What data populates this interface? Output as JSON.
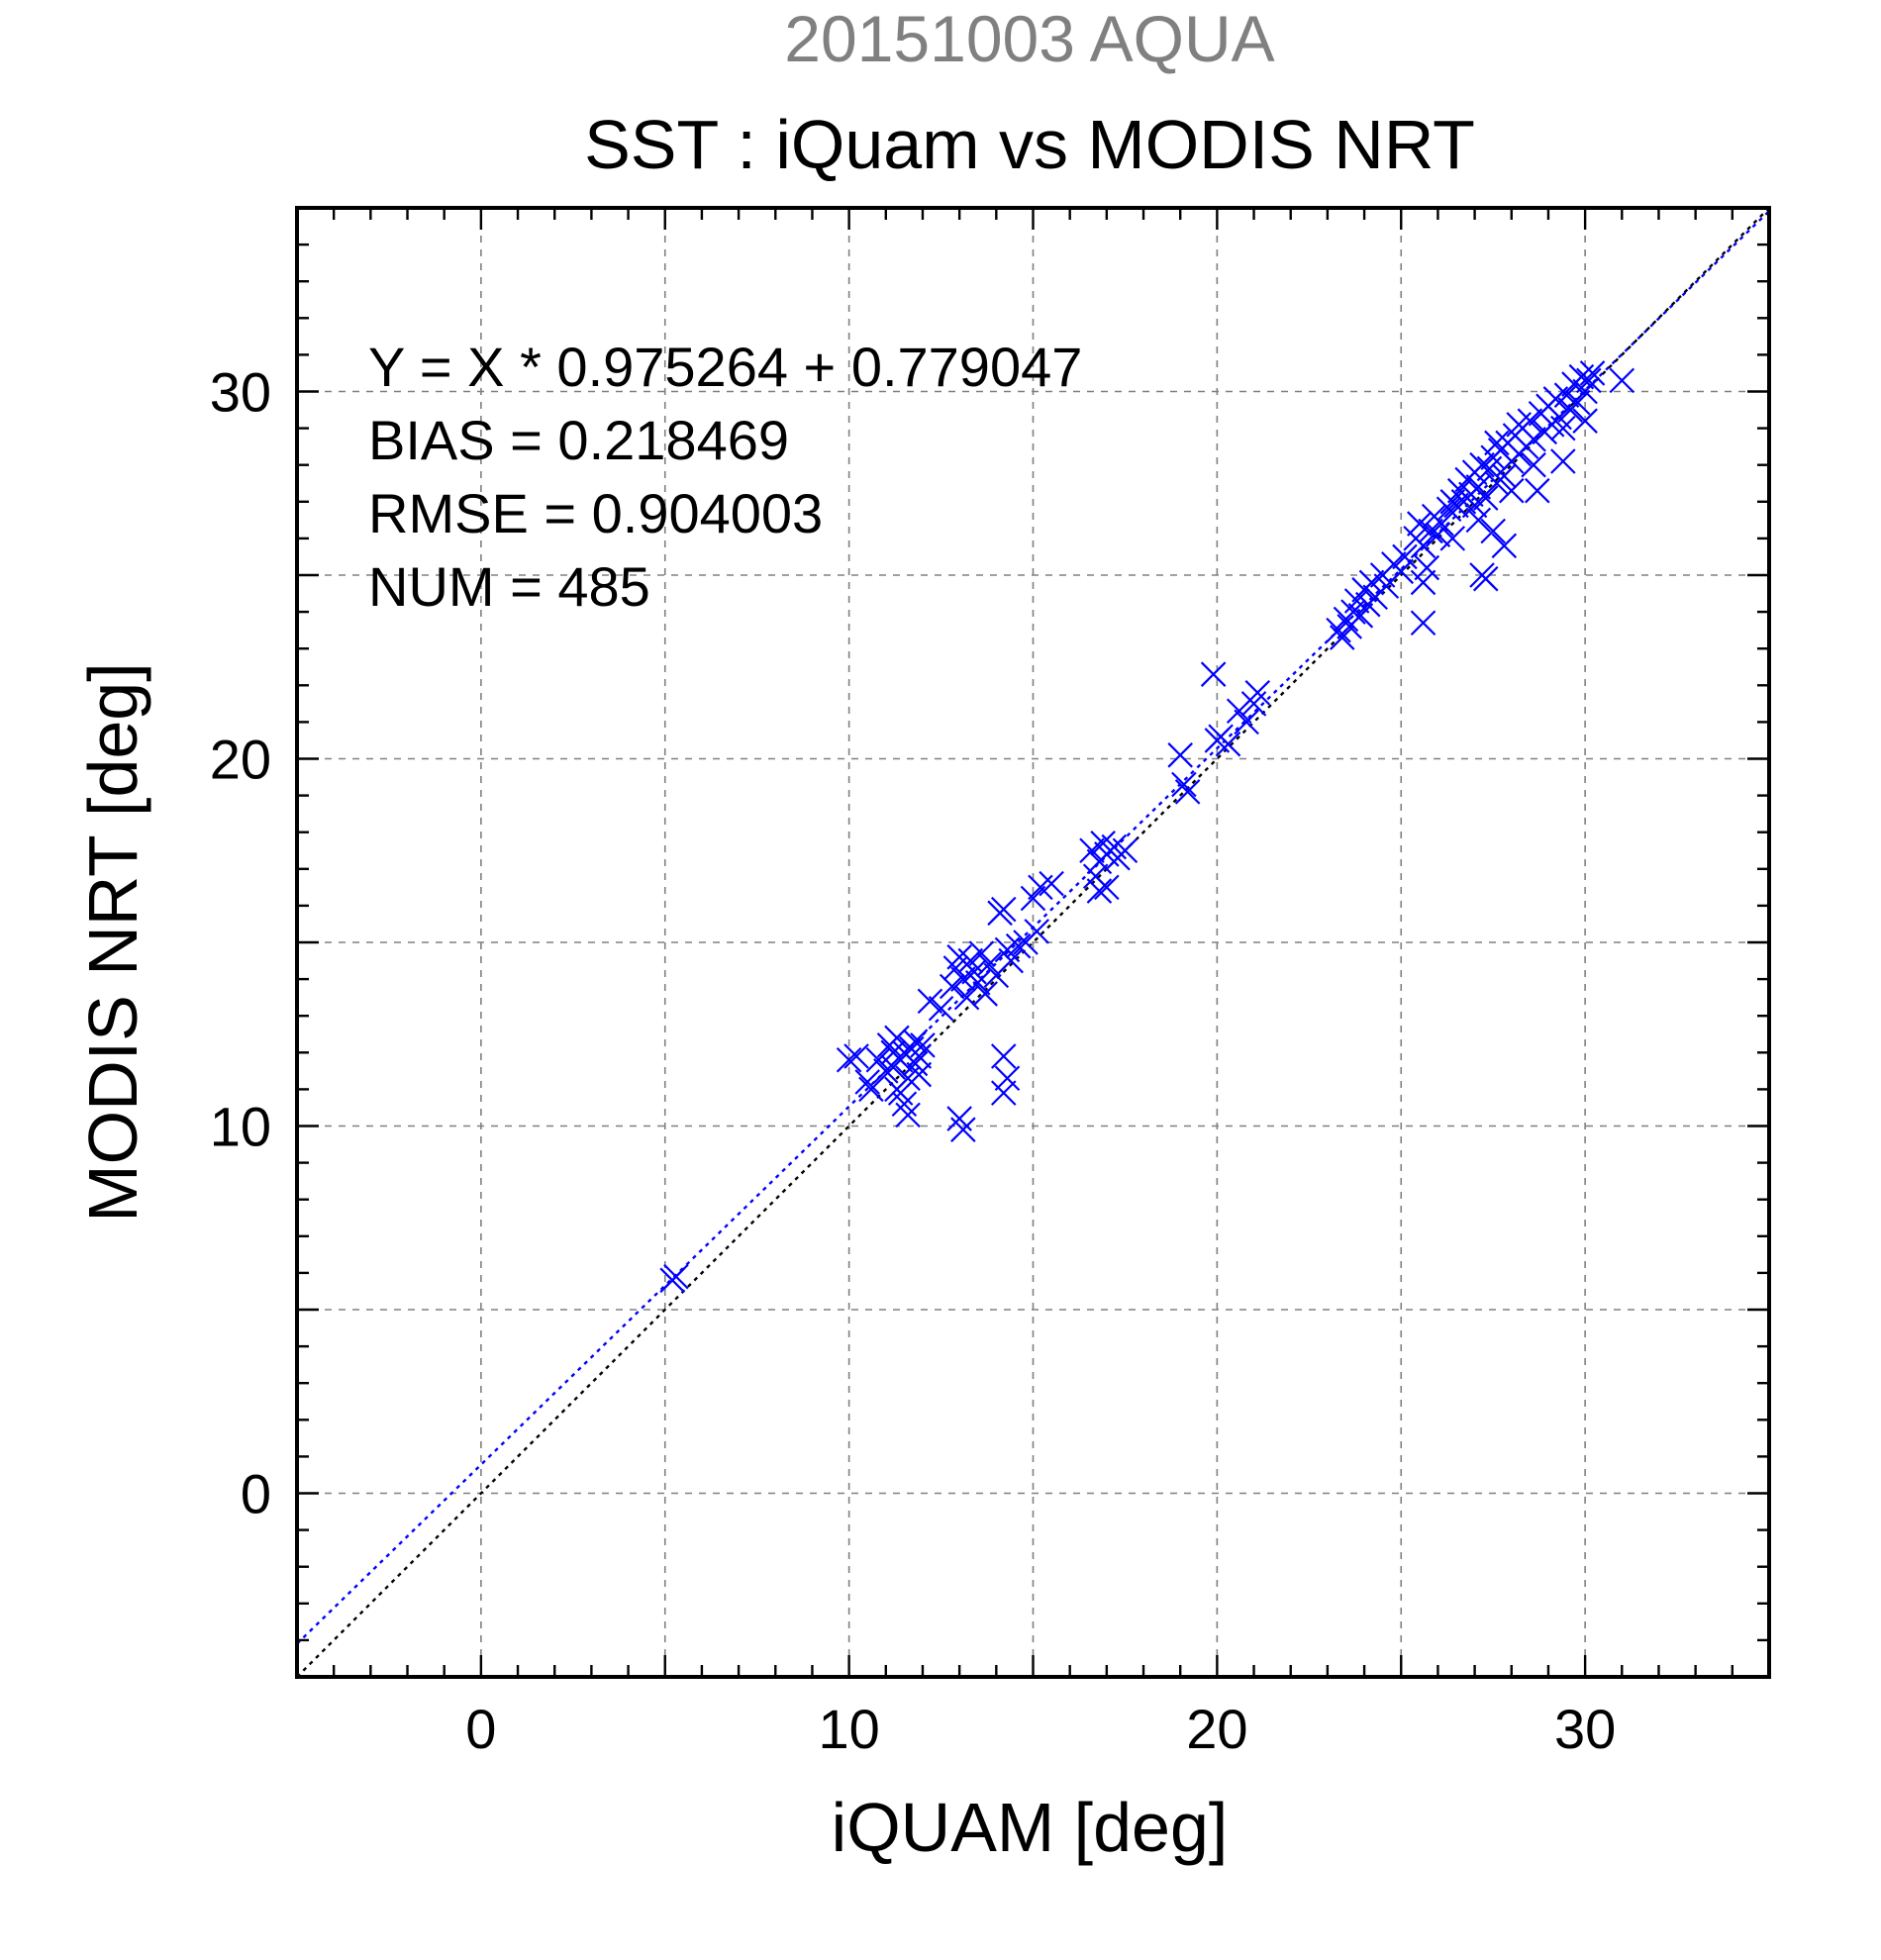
{
  "chart_data": {
    "type": "scatter",
    "title": "20151003 AQUA",
    "subtitle": "SST : iQuam vs MODIS NRT",
    "xlabel": "iQUAM [deg]",
    "ylabel": "MODIS NRT [deg]",
    "xlim": [
      -5,
      35
    ],
    "ylim": [
      -5,
      35
    ],
    "xticks": [
      0,
      10,
      20,
      30
    ],
    "yticks": [
      0,
      10,
      20,
      30
    ],
    "grid": true,
    "colors": {
      "title": "#808080",
      "text": "#000000",
      "points": "#0000ff",
      "fit_line": "#0000ff",
      "identity_line": "#000000",
      "grid": "#808080"
    },
    "stats": [
      "Y = X * 0.975264 + 0.779047",
      "BIAS = 0.218469",
      "RMSE = 0.904003",
      "NUM = 485"
    ],
    "lines": [
      {
        "kind": "regression",
        "slope": 0.975264,
        "intercept": 0.779047,
        "style": "dotted",
        "color": "#0000ff"
      },
      {
        "kind": "identity",
        "slope": 1,
        "intercept": 0,
        "style": "dotted",
        "color": "#000000"
      }
    ],
    "series": [
      {
        "marker": "x",
        "color": "#0000ff",
        "points": [
          [
            5.2,
            5.8
          ],
          [
            5.3,
            5.9
          ],
          [
            10.0,
            11.8
          ],
          [
            10.2,
            11.9
          ],
          [
            10.5,
            11.2
          ],
          [
            10.6,
            11.0
          ],
          [
            10.8,
            11.8
          ],
          [
            11.0,
            11.5
          ],
          [
            11.1,
            12.2
          ],
          [
            11.2,
            11.6
          ],
          [
            11.3,
            12.4
          ],
          [
            11.3,
            11.0
          ],
          [
            11.4,
            11.8
          ],
          [
            11.5,
            12.0
          ],
          [
            11.5,
            10.6
          ],
          [
            11.6,
            11.3
          ],
          [
            11.7,
            12.1
          ],
          [
            11.8,
            11.7
          ],
          [
            11.8,
            12.3
          ],
          [
            11.9,
            11.9
          ],
          [
            11.2,
            12.0
          ],
          [
            11.4,
            10.9
          ],
          [
            11.6,
            10.3
          ],
          [
            11.9,
            11.4
          ],
          [
            12.0,
            12.2
          ],
          [
            12.2,
            13.4
          ],
          [
            12.5,
            13.2
          ],
          [
            12.8,
            13.8
          ],
          [
            12.9,
            14.3
          ],
          [
            13.0,
            14.6
          ],
          [
            13.0,
            10.2
          ],
          [
            13.1,
            9.9
          ],
          [
            13.1,
            14.0
          ],
          [
            13.2,
            13.5
          ],
          [
            13.3,
            14.5
          ],
          [
            13.4,
            14.2
          ],
          [
            13.5,
            13.9
          ],
          [
            13.6,
            14.7
          ],
          [
            13.7,
            13.6
          ],
          [
            13.8,
            14.4
          ],
          [
            14.0,
            14.1
          ],
          [
            14.1,
            15.8
          ],
          [
            14.2,
            15.9
          ],
          [
            14.3,
            14.8
          ],
          [
            14.4,
            14.5
          ],
          [
            14.6,
            14.9
          ],
          [
            14.2,
            11.9
          ],
          [
            14.3,
            11.3
          ],
          [
            14.2,
            10.9
          ],
          [
            14.8,
            15.0
          ],
          [
            15.0,
            16.2
          ],
          [
            15.1,
            15.3
          ],
          [
            15.2,
            16.5
          ],
          [
            15.5,
            16.6
          ],
          [
            16.6,
            17.5
          ],
          [
            16.7,
            16.8
          ],
          [
            16.8,
            16.4
          ],
          [
            16.8,
            17.2
          ],
          [
            16.9,
            17.7
          ],
          [
            17.0,
            16.5
          ],
          [
            17.0,
            17.4
          ],
          [
            17.2,
            17.6
          ],
          [
            17.3,
            17.3
          ],
          [
            17.5,
            17.5
          ],
          [
            19.0,
            20.1
          ],
          [
            19.1,
            19.3
          ],
          [
            19.2,
            19.1
          ],
          [
            19.9,
            22.3
          ],
          [
            20.0,
            20.5
          ],
          [
            20.1,
            20.6
          ],
          [
            20.3,
            20.4
          ],
          [
            20.6,
            21.3
          ],
          [
            20.8,
            21.0
          ],
          [
            21.0,
            21.5
          ],
          [
            21.1,
            21.8
          ],
          [
            23.3,
            23.5
          ],
          [
            23.4,
            23.3
          ],
          [
            23.5,
            23.8
          ],
          [
            23.6,
            23.6
          ],
          [
            23.7,
            24.0
          ],
          [
            23.8,
            24.3
          ],
          [
            23.9,
            23.9
          ],
          [
            24.0,
            24.6
          ],
          [
            24.1,
            24.2
          ],
          [
            24.2,
            24.8
          ],
          [
            24.3,
            24.4
          ],
          [
            24.5,
            25.0
          ],
          [
            24.6,
            24.7
          ],
          [
            24.8,
            25.3
          ],
          [
            25.0,
            25.1
          ],
          [
            25.1,
            25.5
          ],
          [
            25.4,
            26.0
          ],
          [
            25.5,
            26.4
          ],
          [
            25.6,
            25.8
          ],
          [
            25.7,
            25.2
          ],
          [
            25.6,
            24.8
          ],
          [
            25.6,
            23.7
          ],
          [
            25.8,
            26.2
          ],
          [
            25.9,
            26.6
          ],
          [
            26.0,
            26.1
          ],
          [
            26.1,
            26.4
          ],
          [
            26.3,
            26.8
          ],
          [
            26.4,
            26.0
          ],
          [
            26.5,
            26.9
          ],
          [
            26.6,
            27.3
          ],
          [
            26.7,
            27.0
          ],
          [
            26.8,
            27.6
          ],
          [
            26.9,
            27.2
          ],
          [
            27.0,
            27.8
          ],
          [
            27.1,
            27.4
          ],
          [
            27.1,
            26.5
          ],
          [
            27.2,
            28.0
          ],
          [
            27.2,
            25.0
          ],
          [
            27.3,
            27.1
          ],
          [
            27.3,
            24.9
          ],
          [
            27.4,
            27.9
          ],
          [
            27.5,
            28.2
          ],
          [
            27.5,
            26.2
          ],
          [
            27.6,
            27.5
          ],
          [
            27.7,
            28.4
          ],
          [
            27.8,
            27.7
          ],
          [
            27.8,
            25.8
          ],
          [
            27.9,
            28.6
          ],
          [
            28.0,
            28.1
          ],
          [
            28.0,
            27.3
          ],
          [
            28.1,
            28.8
          ],
          [
            28.2,
            28.3
          ],
          [
            28.3,
            29.0
          ],
          [
            28.4,
            28.5
          ],
          [
            28.5,
            29.2
          ],
          [
            28.6,
            28.7
          ],
          [
            28.7,
            27.3
          ],
          [
            28.8,
            29.4
          ],
          [
            28.9,
            28.9
          ],
          [
            29.0,
            29.6
          ],
          [
            29.1,
            29.1
          ],
          [
            29.2,
            29.8
          ],
          [
            29.3,
            29.3
          ],
          [
            29.4,
            28.1
          ],
          [
            29.5,
            29.9
          ],
          [
            29.6,
            29.5
          ],
          [
            29.7,
            30.2
          ],
          [
            29.8,
            29.7
          ],
          [
            29.9,
            30.4
          ],
          [
            30.0,
            30.0
          ],
          [
            30.2,
            30.5
          ],
          [
            30.0,
            29.2
          ],
          [
            30.1,
            30.3
          ],
          [
            31.0,
            30.3
          ],
          [
            29.4,
            29.0
          ],
          [
            28.6,
            28.0
          ],
          [
            28.2,
            29.1
          ],
          [
            27.6,
            28.6
          ],
          [
            27.0,
            26.9
          ],
          [
            26.4,
            27.0
          ]
        ]
      }
    ]
  }
}
